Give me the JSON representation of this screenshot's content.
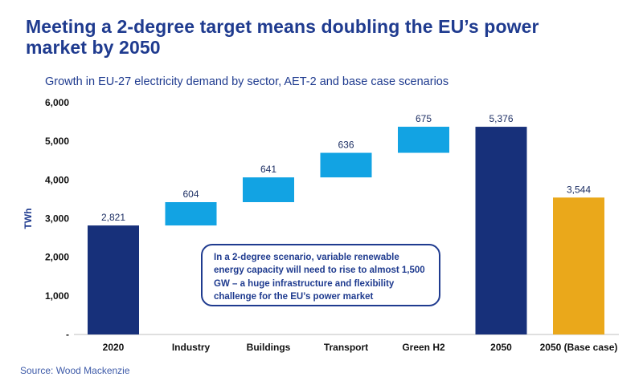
{
  "title": "Meeting a 2-degree target means doubling the EU’s power market by 2050",
  "subtitle": "Growth in EU-27 electricity demand by sector, AET-2 and base case scenarios",
  "source": "Source: Wood Mackenzie",
  "annotation": "In a 2-degree scenario, variable renewable energy capacity will need to rise to almost 1,500 GW – a huge infrastructure and flexibility challenge for the EU’s power market",
  "colors": {
    "title": "#1f3b8f",
    "total_bar": "#17307a",
    "increment_bar": "#12a3e3",
    "base_case_bar": "#eaa81b",
    "axis_text": "#111111",
    "label_text": "#1c2e63"
  },
  "chart_data": {
    "type": "bar",
    "subtype": "waterfall",
    "title": "Growth in EU-27 electricity demand by sector, AET-2 and base case scenarios",
    "xlabel": "",
    "ylabel": "TWh",
    "ylim": [
      0,
      6000
    ],
    "yticks": [
      0,
      1000,
      2000,
      3000,
      4000,
      5000,
      6000
    ],
    "ytick_labels": [
      "-",
      "1,000",
      "2,000",
      "3,000",
      "4,000",
      "5,000",
      "6,000"
    ],
    "categories": [
      "2020",
      "Industry",
      "Buildings",
      "Transport",
      "Green H2",
      "2050",
      "2050 (Base case)"
    ],
    "bars": [
      {
        "category": "2020",
        "kind": "total",
        "start": 0,
        "end": 2821,
        "label": "2,821"
      },
      {
        "category": "Industry",
        "kind": "increment",
        "start": 2821,
        "end": 3425,
        "label": "604"
      },
      {
        "category": "Buildings",
        "kind": "increment",
        "start": 3425,
        "end": 4066,
        "label": "641"
      },
      {
        "category": "Transport",
        "kind": "increment",
        "start": 4066,
        "end": 4702,
        "label": "636"
      },
      {
        "category": "Green H2",
        "kind": "increment",
        "start": 4702,
        "end": 5377,
        "label": "675"
      },
      {
        "category": "2050",
        "kind": "total",
        "start": 0,
        "end": 5376,
        "label": "5,376"
      },
      {
        "category": "2050 (Base case)",
        "kind": "base",
        "start": 0,
        "end": 3544,
        "label": "3,544"
      }
    ],
    "grid": false,
    "legend": "none"
  }
}
